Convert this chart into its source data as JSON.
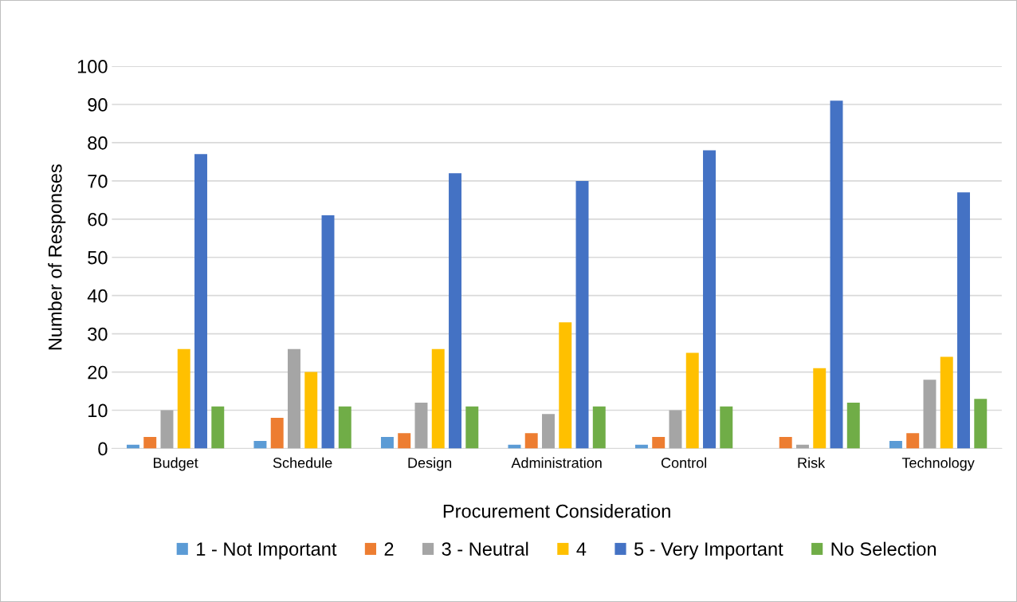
{
  "chart_data": {
    "type": "bar",
    "xlabel": "Procurement Consideration",
    "ylabel": "Number of Responses",
    "categories": [
      "Budget",
      "Schedule",
      "Design",
      "Administration",
      "Control",
      "Risk",
      "Technology"
    ],
    "series": [
      {
        "name": "1 - Not Important",
        "color": "#5b9bd5",
        "values": [
          1,
          2,
          3,
          1,
          1,
          0,
          2
        ]
      },
      {
        "name": "2",
        "color": "#ed7d31",
        "values": [
          3,
          8,
          4,
          4,
          3,
          3,
          4
        ]
      },
      {
        "name": "3 - Neutral",
        "color": "#a5a5a5",
        "values": [
          10,
          26,
          12,
          9,
          10,
          1,
          18
        ]
      },
      {
        "name": "4",
        "color": "#ffc000",
        "values": [
          26,
          20,
          26,
          33,
          25,
          21,
          24
        ]
      },
      {
        "name": "5 - Very Important",
        "color": "#4472c4",
        "values": [
          77,
          61,
          72,
          70,
          78,
          91,
          67
        ]
      },
      {
        "name": "No Selection",
        "color": "#70ad47",
        "values": [
          11,
          11,
          11,
          11,
          11,
          12,
          13
        ]
      }
    ],
    "ylim": [
      0,
      100
    ],
    "yticks": [
      0,
      10,
      20,
      30,
      40,
      50,
      60,
      70,
      80,
      90,
      100
    ],
    "grid": "y",
    "legend": "bottom"
  }
}
